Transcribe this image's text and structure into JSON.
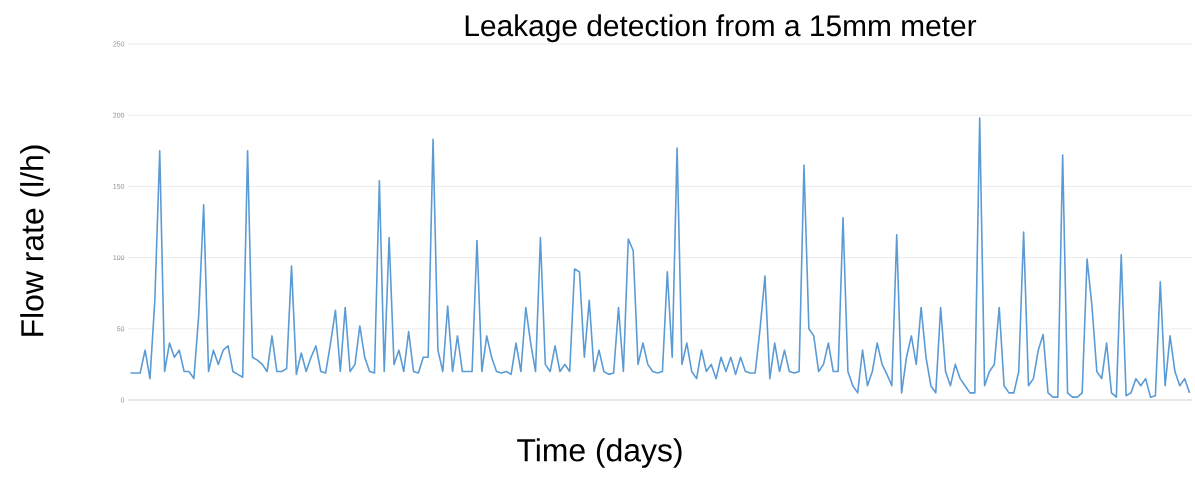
{
  "chart_data": {
    "type": "line",
    "title": "Leakage detection from a 15mm meter",
    "xlabel": "Time (days)",
    "ylabel": "Flow rate (l/h)",
    "ylim": [
      0,
      250
    ],
    "yticks": [
      0,
      50,
      100,
      150,
      200,
      250
    ],
    "grid": "y",
    "tick_labels": "y",
    "color": "#5b9bd5",
    "line_style": "solid",
    "categories": [
      null,
      null,
      null,
      null,
      null,
      null,
      null,
      null,
      null,
      null,
      null,
      null,
      null,
      null,
      null,
      null,
      null,
      null,
      null,
      null,
      null,
      null,
      null,
      null,
      null,
      null,
      null,
      null,
      null,
      null,
      null,
      null,
      null,
      null,
      null,
      null,
      null,
      null,
      null,
      null,
      null,
      null,
      null,
      null,
      null,
      null,
      null,
      null,
      null,
      null,
      null,
      null,
      null,
      null,
      null,
      null,
      null,
      null,
      null,
      null,
      null,
      null,
      null,
      null,
      null,
      null,
      null,
      null,
      null,
      null,
      null,
      null,
      null,
      null,
      null,
      null,
      null,
      null,
      null,
      null,
      null,
      null,
      null,
      null,
      null,
      null,
      null,
      null,
      null,
      null,
      null,
      null,
      null,
      null,
      null,
      null,
      null,
      null,
      null,
      null,
      null,
      null,
      null,
      null,
      null,
      null,
      null,
      null,
      null,
      null,
      null,
      null,
      null,
      null,
      null,
      null,
      null,
      null,
      null,
      null,
      null,
      null,
      null,
      null,
      null,
      null,
      null,
      null,
      null,
      null,
      null,
      null,
      null,
      null,
      null,
      null,
      null,
      null,
      null,
      null,
      null,
      null,
      null,
      null,
      null,
      null,
      null,
      null,
      null,
      null,
      null,
      null,
      null,
      null,
      null,
      null,
      null,
      null,
      null,
      null,
      null,
      null,
      null,
      null,
      null,
      null,
      null,
      null,
      null,
      null,
      null,
      null,
      null,
      null,
      null,
      null,
      null,
      null,
      null,
      null,
      null,
      null,
      null,
      null,
      null,
      null,
      null,
      null,
      null,
      null,
      null,
      null,
      null,
      null,
      null,
      null,
      null,
      null,
      null,
      null,
      null,
      null,
      null,
      null,
      null,
      null,
      null,
      null,
      null,
      null,
      null,
      null,
      null,
      null,
      null,
      null,
      null,
      null
    ],
    "values": [
      19,
      19,
      19,
      35,
      15,
      70,
      175,
      20,
      40,
      30,
      35,
      20,
      20,
      15,
      60,
      137,
      20,
      35,
      25,
      35,
      38,
      20,
      18,
      16,
      175,
      30,
      28,
      25,
      20,
      45,
      20,
      20,
      22,
      94,
      18,
      33,
      20,
      30,
      38,
      20,
      19,
      40,
      63,
      20,
      65,
      20,
      25,
      52,
      30,
      20,
      19,
      154,
      20,
      114,
      25,
      35,
      20,
      48,
      20,
      19,
      30,
      30,
      183,
      35,
      20,
      66,
      20,
      45,
      20,
      20,
      20,
      112,
      20,
      45,
      30,
      20,
      19,
      20,
      18,
      40,
      20,
      65,
      40,
      20,
      114,
      25,
      20,
      38,
      20,
      25,
      20,
      92,
      90,
      30,
      70,
      20,
      35,
      20,
      18,
      19,
      65,
      20,
      113,
      105,
      25,
      40,
      25,
      20,
      19,
      20,
      90,
      30,
      177,
      25,
      40,
      20,
      15,
      35,
      20,
      25,
      15,
      30,
      20,
      30,
      18,
      30,
      20,
      19,
      19,
      50,
      87,
      15,
      40,
      20,
      35,
      20,
      19,
      20,
      165,
      50,
      45,
      20,
      25,
      40,
      20,
      20,
      128,
      20,
      10,
      5,
      35,
      10,
      20,
      40,
      25,
      18,
      10,
      116,
      5,
      30,
      45,
      25,
      65,
      30,
      10,
      5,
      65,
      20,
      10,
      25,
      15,
      10,
      5,
      5,
      198,
      10,
      20,
      25,
      65,
      10,
      5,
      5,
      20,
      118,
      10,
      15,
      35,
      46,
      5,
      2,
      2,
      172,
      5,
      2,
      2,
      5,
      99,
      66,
      20,
      15,
      40,
      5,
      2,
      102,
      3,
      5,
      15,
      10,
      15,
      2,
      3,
      83,
      10,
      45,
      20,
      10,
      15,
      5
    ]
  }
}
